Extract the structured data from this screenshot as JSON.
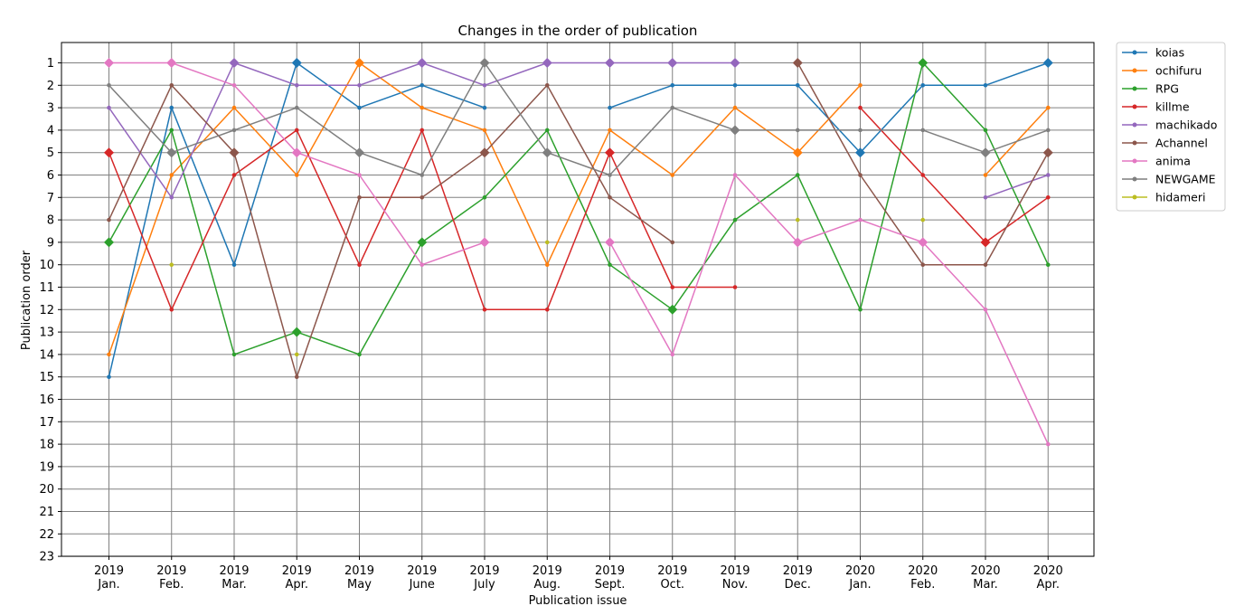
{
  "chart_data": {
    "type": "line",
    "title": "Changes in the order of publication",
    "xlabel": "Publication issue",
    "ylabel": "Publication order",
    "categories": [
      [
        "2019",
        "Jan."
      ],
      [
        "2019",
        "Feb."
      ],
      [
        "2019",
        "Mar."
      ],
      [
        "2019",
        "Apr."
      ],
      [
        "2019",
        "May"
      ],
      [
        "2019",
        "June"
      ],
      [
        "2019",
        "July"
      ],
      [
        "2019",
        "Aug."
      ],
      [
        "2019",
        "Sept."
      ],
      [
        "2019",
        "Oct."
      ],
      [
        "2019",
        "Nov."
      ],
      [
        "2019",
        "Dec."
      ],
      [
        "2020",
        "Jan."
      ],
      [
        "2020",
        "Feb."
      ],
      [
        "2020",
        "Mar."
      ],
      [
        "2020",
        "Apr."
      ]
    ],
    "yticks": [
      1,
      2,
      3,
      4,
      5,
      6,
      7,
      8,
      9,
      10,
      11,
      12,
      13,
      14,
      15,
      16,
      17,
      18,
      19,
      20,
      21,
      22,
      23
    ],
    "ylim": [
      0.1,
      23
    ],
    "y_inverted": true,
    "grid": true,
    "legend_position": "outside-top-right",
    "series": [
      {
        "name": "koias",
        "color": "#1f77b4",
        "values": [
          15,
          3,
          10,
          1,
          3,
          2,
          3,
          null,
          3,
          2,
          2,
          2,
          5,
          2,
          2,
          1
        ]
      },
      {
        "name": "ochifuru",
        "color": "#ff7f0e",
        "values": [
          14,
          6,
          3,
          6,
          1,
          3,
          4,
          10,
          4,
          6,
          3,
          5,
          2,
          null,
          6,
          3
        ]
      },
      {
        "name": "RPG",
        "color": "#2ca02c",
        "values": [
          9,
          4,
          14,
          13,
          14,
          9,
          7,
          4,
          10,
          12,
          8,
          6,
          12,
          1,
          4,
          10
        ]
      },
      {
        "name": "killme",
        "color": "#d62728",
        "values": [
          5,
          12,
          6,
          4,
          10,
          4,
          12,
          12,
          5,
          11,
          11,
          null,
          3,
          6,
          9,
          7
        ]
      },
      {
        "name": "machikado",
        "color": "#9467bd",
        "values": [
          3,
          7,
          1,
          2,
          2,
          1,
          2,
          1,
          1,
          1,
          1,
          null,
          null,
          null,
          7,
          6
        ]
      },
      {
        "name": "Achannel",
        "color": "#8c564b",
        "values": [
          8,
          2,
          5,
          15,
          7,
          7,
          5,
          2,
          7,
          9,
          null,
          1,
          6,
          10,
          10,
          5
        ]
      },
      {
        "name": "anima",
        "color": "#e377c2",
        "values": [
          1,
          1,
          2,
          5,
          6,
          10,
          9,
          null,
          9,
          14,
          6,
          9,
          8,
          9,
          12,
          18
        ]
      },
      {
        "name": "NEWGAME",
        "color": "#7f7f7f",
        "values": [
          2,
          5,
          4,
          3,
          5,
          6,
          1,
          5,
          6,
          3,
          4,
          4,
          4,
          4,
          5,
          4
        ]
      },
      {
        "name": "hidameri",
        "color": "#bcbd22",
        "values": [
          null,
          10,
          null,
          14,
          null,
          null,
          null,
          9,
          null,
          null,
          null,
          8,
          null,
          8,
          null,
          null
        ]
      }
    ],
    "highlighted_markers": [
      {
        "series": "koias",
        "indices": [
          3,
          12,
          15
        ]
      },
      {
        "series": "ochifuru",
        "indices": [
          4,
          11
        ]
      },
      {
        "series": "RPG",
        "indices": [
          0,
          3,
          5,
          9,
          13
        ]
      },
      {
        "series": "killme",
        "indices": [
          0,
          8,
          14
        ]
      },
      {
        "series": "machikado",
        "indices": [
          2,
          5,
          7,
          8,
          9,
          10
        ]
      },
      {
        "series": "Achannel",
        "indices": [
          2,
          6,
          11,
          15
        ]
      },
      {
        "series": "anima",
        "indices": [
          0,
          1,
          3,
          6,
          8,
          11,
          13
        ]
      },
      {
        "series": "NEWGAME",
        "indices": [
          1,
          4,
          6,
          7,
          10,
          14
        ]
      }
    ]
  }
}
